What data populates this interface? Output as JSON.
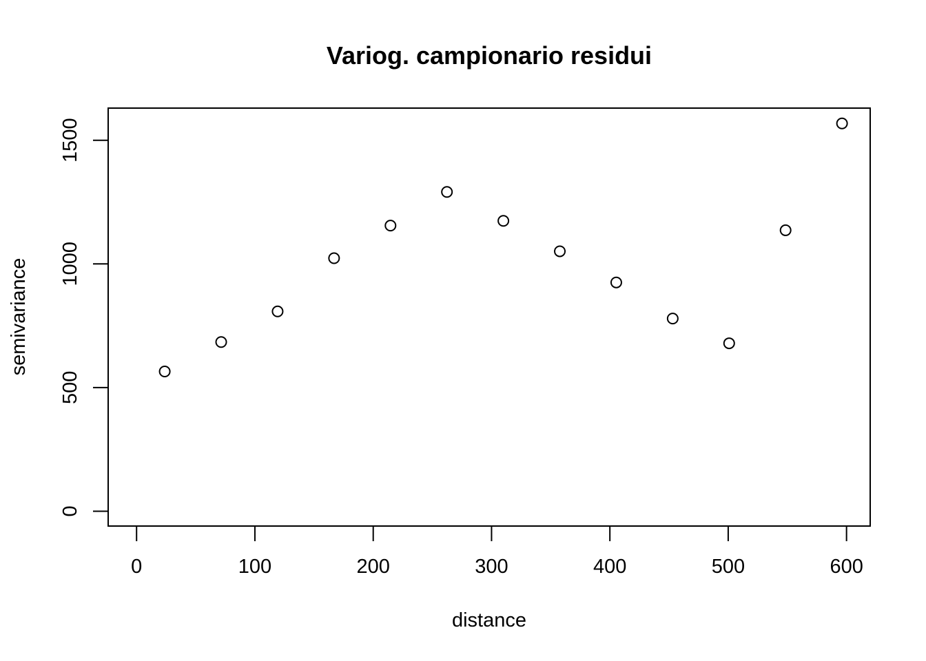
{
  "chart_data": {
    "type": "scatter",
    "title": "Variog. campionario residui",
    "xlabel": "distance",
    "ylabel": "semivariance",
    "xlim": [
      -24,
      620
    ],
    "ylim": [
      -60,
      1630
    ],
    "x_ticks": [
      0,
      100,
      200,
      300,
      400,
      500,
      600
    ],
    "y_ticks": [
      0,
      500,
      1000,
      1500
    ],
    "x_tick_labels": [
      "0",
      "100",
      "200",
      "300",
      "400",
      "500",
      "600"
    ],
    "y_tick_labels": [
      "0",
      "500",
      "1000",
      "1500"
    ],
    "grid": false,
    "legend": "none",
    "marker": "open-circle",
    "series": [
      {
        "x": [
          23.8,
          71.5,
          119.2,
          166.9,
          214.6,
          262.3,
          310.0,
          357.7,
          405.4,
          453.1,
          500.8,
          548.5,
          596.2
        ],
        "y": [
          565,
          684,
          808,
          1023,
          1155,
          1291,
          1174,
          1051,
          925,
          779,
          679,
          1136,
          1568
        ]
      }
    ]
  }
}
